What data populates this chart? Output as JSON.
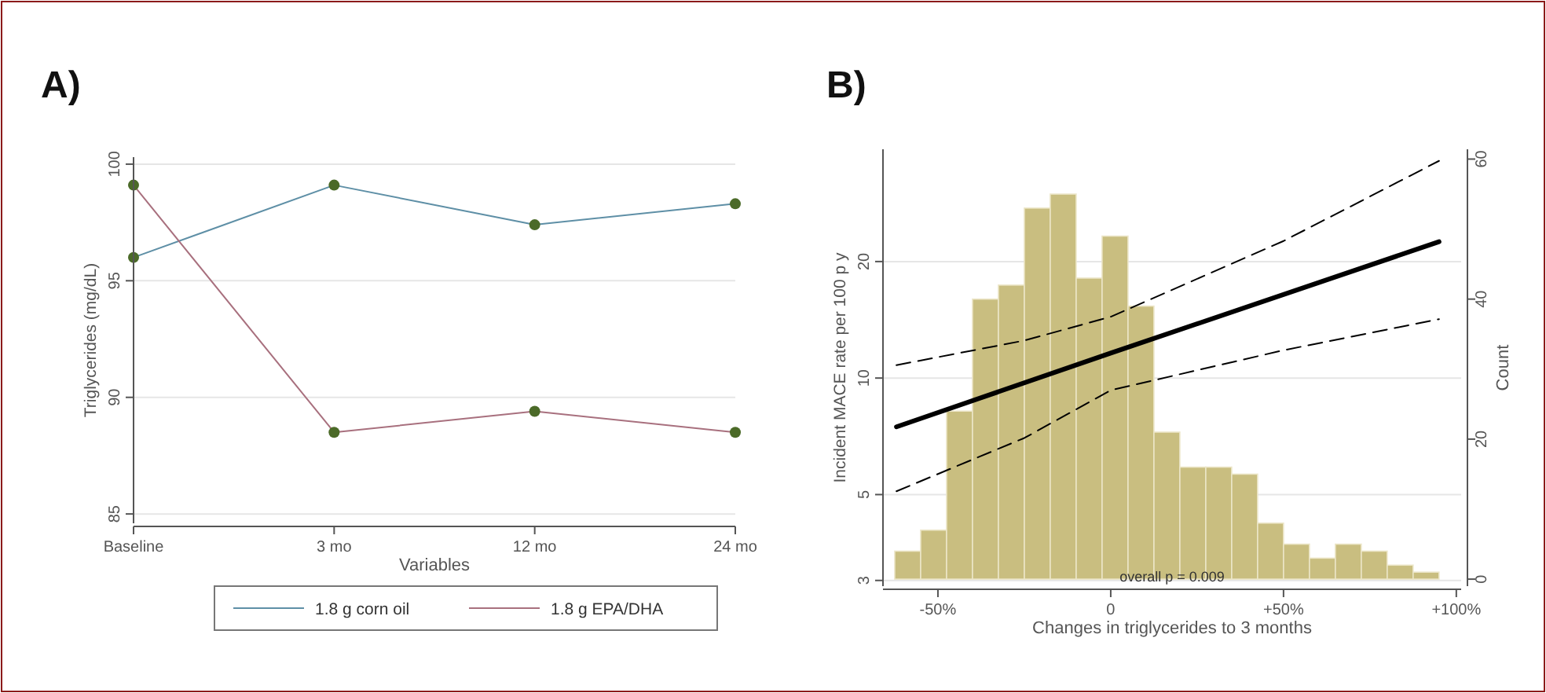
{
  "chart_data": [
    {
      "type": "line",
      "title": "A)",
      "xlabel": "Variables",
      "ylabel": "Triglycerides (mg/dL)",
      "categories": [
        "Baseline",
        "3 mo",
        "12 mo",
        "24 mo"
      ],
      "ylim": [
        84.6,
        100.3
      ],
      "yticks": [
        85,
        90,
        95,
        100
      ],
      "grid": "y",
      "marker": "circle",
      "legend": "bottom",
      "series": [
        {
          "name": "1.8 g corn oil",
          "color": "#5e8fa6",
          "values": [
            96.0,
            99.1,
            97.4,
            98.3
          ]
        },
        {
          "name": "1.8 g EPA/DHA",
          "color": "#a8707e",
          "values": [
            99.1,
            88.5,
            89.4,
            88.5
          ]
        }
      ]
    },
    {
      "type": "line",
      "title": "B)",
      "xlabel": "Changes in triglycerides to 3 months",
      "ylabel": "Incident MACE rate per 100 p y",
      "y2label": "Count",
      "log": "y",
      "grid": "y",
      "xlim": [
        -65.9,
        101.4
      ],
      "xticks": [
        {
          "value": -50,
          "label": "-50%"
        },
        0,
        {
          "value": 50,
          "label": "+50%"
        },
        {
          "value": 100,
          "label": "+100%"
        }
      ],
      "ylim": [
        2.9,
        39
      ],
      "yticks": [
        3,
        5,
        10,
        20
      ],
      "y2lim": [
        -1,
        61.4
      ],
      "y2ticks": [
        0,
        20,
        40,
        60
      ],
      "annotations": [
        "overall p = 0.009"
      ],
      "series": [
        {
          "type": "histogram",
          "axis": "y2",
          "color": "#c9be80",
          "bins": [
            -62.5,
            -55,
            -47.5,
            -40,
            -32.5,
            -25,
            -17.5,
            -10,
            -2.5,
            5,
            12.5,
            20,
            27.5,
            35,
            42.5,
            50,
            57.5,
            65,
            72.5,
            80,
            87.5,
            95
          ],
          "values": [
            4,
            7,
            24,
            40,
            42,
            53,
            55,
            43,
            49,
            39,
            21,
            16,
            16,
            15,
            8,
            5,
            3,
            5,
            4,
            2,
            1
          ]
        },
        {
          "color": "#000000",
          "x": [
            -62,
            0,
            95
          ],
          "values": [
            7.48,
            11.6,
            22.5
          ]
        },
        {
          "color": "#000000",
          "line_style": "dashed",
          "x": [
            -62,
            -25,
            0,
            50,
            95
          ],
          "values": [
            10.8,
            12.5,
            14.4,
            22.6,
            36.4
          ]
        },
        {
          "color": "#000000",
          "line_style": "dashed",
          "x": [
            -62,
            -25,
            0,
            50,
            95
          ],
          "values": [
            5.1,
            7.0,
            9.3,
            11.8,
            14.2
          ]
        }
      ]
    }
  ]
}
